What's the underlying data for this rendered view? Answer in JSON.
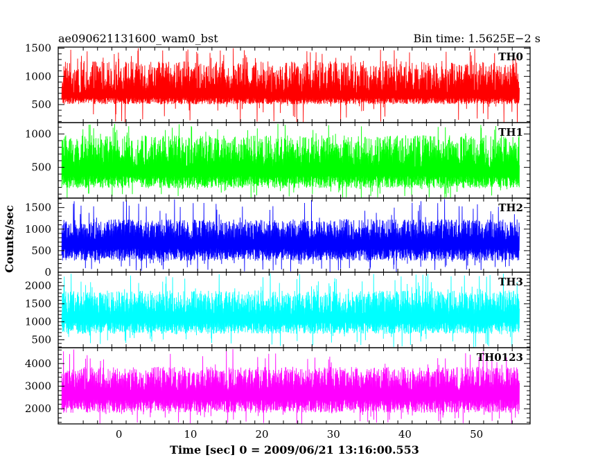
{
  "header": {
    "title": "ae090621131600_wam0_bst",
    "bin_time": "Bin time: 1.5625E−2 s"
  },
  "chart_data": {
    "type": "line",
    "xlabel": "Time [sec] 0 = 2009/06/21 13:16:00.553",
    "ylabel": "Counts/sec",
    "xlim": [
      -8.5,
      57.5
    ],
    "x_range": [
      -8,
      56
    ],
    "x_ticks": [
      0,
      10,
      20,
      30,
      40,
      50
    ],
    "x_tick_labels": [
      "0",
      "10",
      "20",
      "30",
      "40",
      "50"
    ],
    "panels": [
      {
        "name": "TH0",
        "color": "#ff0000",
        "ylim": [
          180,
          1520
        ],
        "yticks": [
          500,
          1000,
          1500
        ],
        "ytick_labels": [
          "500",
          "1000",
          "1500"
        ],
        "base": 500,
        "mid": 700,
        "peak": 1300,
        "spike_max": 1500
      },
      {
        "name": "TH1",
        "color": "#00ff00",
        "ylim": [
          40,
          1170
        ],
        "yticks": [
          500,
          1000
        ],
        "ytick_labels": [
          "500",
          "1000"
        ],
        "base": 180,
        "mid": 500,
        "peak": 1000,
        "spike_max": 1170
      },
      {
        "name": "TH2",
        "color": "#0000ff",
        "ylim": [
          0,
          1720
        ],
        "yticks": [
          0,
          500,
          1000,
          1500
        ],
        "ytick_labels": [
          "0",
          "500",
          "1000",
          "1500"
        ],
        "base": 250,
        "mid": 750,
        "peak": 1250,
        "spike_max": 1700
      },
      {
        "name": "TH3",
        "color": "#00ffff",
        "ylim": [
          280,
          2380
        ],
        "yticks": [
          500,
          1000,
          1500,
          2000
        ],
        "ytick_labels": [
          "500",
          "1000",
          "1500",
          "2000"
        ],
        "base": 650,
        "mid": 1200,
        "peak": 1900,
        "spike_max": 2350
      },
      {
        "name": "TH0123",
        "color": "#ff00ff",
        "ylim": [
          1330,
          4700
        ],
        "yticks": [
          2000,
          3000,
          4000
        ],
        "ytick_labels": [
          "2000",
          "3000",
          "4000"
        ],
        "base": 1800,
        "mid": 2800,
        "peak": 3900,
        "spike_max": 4650
      }
    ]
  }
}
